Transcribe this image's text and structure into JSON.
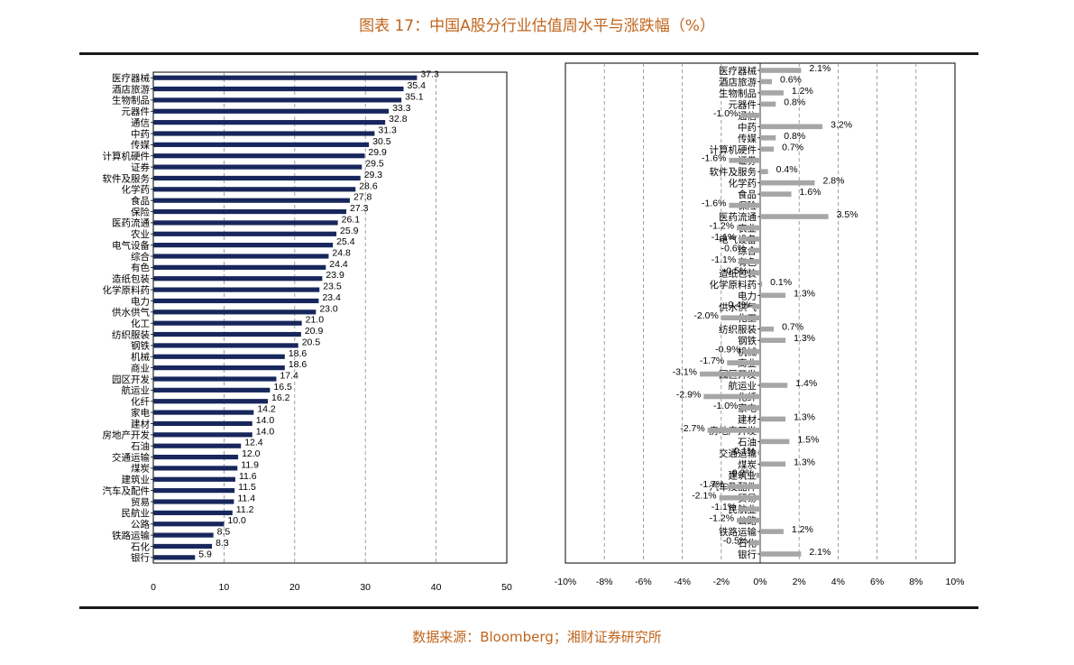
{
  "figure_title": "图表 17：中国A股分行业估值周水平与涨跌幅（%）",
  "source": "数据来源：Bloomberg；湘财证券研究所",
  "colors": {
    "left_bar": "#17275c",
    "right_bar": "#a6a6a6",
    "accent_text": "#c0651c"
  },
  "chart_data": [
    {
      "type": "bar",
      "orientation": "horizontal",
      "categories": [
        "医疗器械",
        "酒店旅游",
        "生物制品",
        "元器件",
        "通信",
        "中药",
        "传媒",
        "计算机硬件",
        "证券",
        "软件及服务",
        "化学药",
        "食品",
        "保险",
        "医药流通",
        "农业",
        "电气设备",
        "综合",
        "有色",
        "造纸包装",
        "化学原料药",
        "电力",
        "供水供气",
        "化工",
        "纺织服装",
        "钢铁",
        "机械",
        "商业",
        "园区开发",
        "航运业",
        "化纤",
        "家电",
        "建材",
        "房地产开发",
        "石油",
        "交通运输",
        "煤炭",
        "建筑业",
        "汽车及配件",
        "贸易",
        "民航业",
        "公路",
        "铁路运输",
        "石化",
        "银行"
      ],
      "values": [
        37.3,
        35.4,
        35.1,
        33.3,
        32.8,
        31.3,
        30.5,
        29.9,
        29.5,
        29.3,
        28.6,
        27.8,
        27.3,
        26.1,
        25.9,
        25.4,
        24.8,
        24.4,
        23.9,
        23.5,
        23.4,
        23.0,
        21.0,
        20.9,
        20.5,
        18.6,
        18.6,
        17.4,
        16.5,
        16.2,
        14.2,
        14.0,
        14.0,
        12.4,
        12.0,
        11.9,
        11.6,
        11.5,
        11.4,
        11.2,
        10.0,
        8.5,
        8.3,
        5.9
      ],
      "value_labels": [
        "37.3",
        "35.4",
        "35.1",
        "33.3",
        "32.8",
        "31.3",
        "30.5",
        "29.9",
        "29.5",
        "29.3",
        "28.6",
        "27.8",
        "27.3",
        "26.1",
        "25.9",
        "25.4",
        "24.8",
        "24.4",
        "23.9",
        "23.5",
        "23.4",
        "23.0",
        "21.0",
        "20.9",
        "20.5",
        "18.6",
        "18.6",
        "17.4",
        "16.5",
        "16.2",
        "14.2",
        "14.0",
        "14.0",
        "12.4",
        "12.0",
        "11.9",
        "11.6",
        "11.5",
        "11.4",
        "11.2",
        "10.0",
        "8.5",
        "8.3",
        "5.9"
      ],
      "xlim": [
        0,
        50
      ],
      "xticks": [
        0,
        10,
        20,
        30,
        40,
        50
      ],
      "xtick_labels": [
        "0",
        "10",
        "20",
        "30",
        "40",
        "50"
      ],
      "grid": "vertical dashed"
    },
    {
      "type": "bar",
      "orientation": "horizontal",
      "categories": [
        "医疗器械",
        "酒店旅游",
        "生物制品",
        "元器件",
        "通信",
        "中药",
        "传媒",
        "计算机硬件",
        "证券",
        "软件及服务",
        "化学药",
        "食品",
        "保险",
        "医药流通",
        "农业",
        "电气设备",
        "综合",
        "有色",
        "造纸包装",
        "化学原料药",
        "电力",
        "供水供气",
        "化工",
        "纺织服装",
        "钢铁",
        "机械",
        "商业",
        "园区开发",
        "航运业",
        "化纤",
        "家电",
        "建材",
        "房地产开发",
        "石油",
        "交通运输",
        "煤炭",
        "建筑业",
        "汽车及配件",
        "贸易",
        "民航业",
        "公路",
        "铁路运输",
        "石化",
        "银行"
      ],
      "values": [
        2.1,
        0.6,
        1.2,
        0.8,
        -1.0,
        3.2,
        0.8,
        0.7,
        -1.6,
        0.4,
        2.8,
        1.6,
        -1.6,
        3.5,
        -1.2,
        -1.1,
        -0.6,
        -1.1,
        -0.5,
        0.1,
        1.3,
        -0.4,
        -2.0,
        0.7,
        1.3,
        -0.9,
        -1.7,
        -3.1,
        1.4,
        -2.9,
        -1.0,
        1.3,
        -2.7,
        1.5,
        -0.1,
        1.3,
        -0.2,
        -1.7,
        -2.1,
        -1.1,
        -1.2,
        1.2,
        -0.5,
        2.1
      ],
      "value_labels": [
        "2.1%",
        "0.6%",
        "1.2%",
        "0.8%",
        "-1.0%",
        "3.2%",
        "0.8%",
        "0.7%",
        "-1.6%",
        "0.4%",
        "2.8%",
        "1.6%",
        "-1.6%",
        "3.5%",
        "-1.2%",
        "-1.1%",
        "-0.6%",
        "-1.1%",
        "-0.5%",
        "0.1%",
        "1.3%",
        "-0.4%",
        "-2.0%",
        "0.7%",
        "1.3%",
        "-0.9%",
        "-1.7%",
        "-3.1%",
        "1.4%",
        "-2.9%",
        "-1.0%",
        "1.3%",
        "-2.7%",
        "1.5%",
        "-0.1%",
        "1.3%",
        "-0.2%",
        "-1.7%",
        "-2.1%",
        "-1.1%",
        "-1.2%",
        "1.2%",
        "-0.5%",
        "2.1%"
      ],
      "xlim": [
        -10,
        10
      ],
      "xticks": [
        -10,
        -8,
        -6,
        -4,
        -2,
        0,
        2,
        4,
        6,
        8,
        10
      ],
      "xtick_labels": [
        "-10%",
        "-8%",
        "-6%",
        "-4%",
        "-2%",
        "0%",
        "2%",
        "4%",
        "6%",
        "8%",
        "10%"
      ],
      "grid": "vertical dashed"
    }
  ]
}
